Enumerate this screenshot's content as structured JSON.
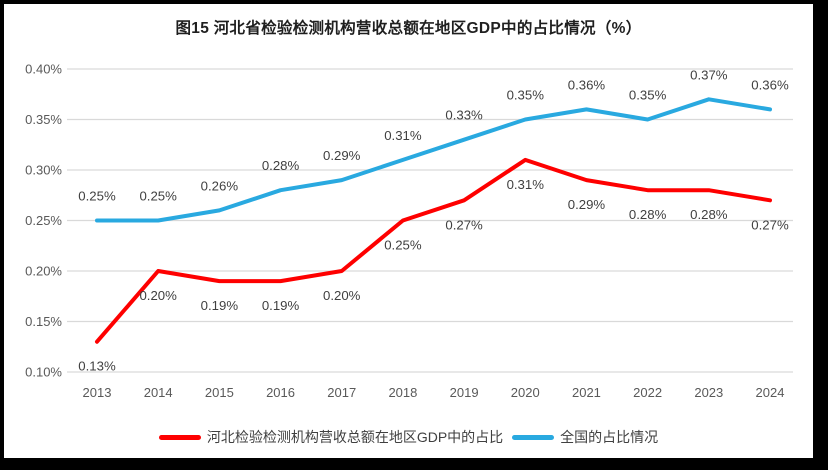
{
  "chart_title": "图15 河北省检验检测机构营收总额在地区GDP中的占比情况（%）",
  "chart_data": {
    "type": "line",
    "title": "图15 河北省检验检测机构营收总额在地区GDP中的占比情况（%）",
    "categories": [
      "2013",
      "2014",
      "2015",
      "2016",
      "2017",
      "2018",
      "2019",
      "2020",
      "2021",
      "2022",
      "2023",
      "2024"
    ],
    "xlabel": "",
    "ylabel": "",
    "y_unit": "%",
    "ylim": [
      0.1,
      0.4
    ],
    "y_ticks": [
      "0.40%",
      "0.35%",
      "0.30%",
      "0.25%",
      "0.20%",
      "0.15%",
      "0.10%"
    ],
    "grid": true,
    "legend_position": "bottom",
    "series": [
      {
        "name": "河北检验检测机构营收总额在地区GDP中的占比",
        "color": "#FE0000",
        "values": [
          0.13,
          0.2,
          0.19,
          0.19,
          0.2,
          0.25,
          0.27,
          0.31,
          0.29,
          0.28,
          0.28,
          0.27
        ],
        "data_labels": [
          "0.13%",
          "0.20%",
          "0.19%",
          "0.19%",
          "0.20%",
          "0.25%",
          "0.27%",
          "0.31%",
          "0.29%",
          "0.28%",
          "0.28%",
          "0.27%"
        ],
        "label_position": "below"
      },
      {
        "name": "全国的占比情况",
        "color": "#29A9E0",
        "values": [
          0.25,
          0.25,
          0.26,
          0.28,
          0.29,
          0.31,
          0.33,
          0.35,
          0.36,
          0.35,
          0.37,
          0.36
        ],
        "data_labels": [
          "0.25%",
          "0.25%",
          "0.26%",
          "0.28%",
          "0.29%",
          "0.31%",
          "0.33%",
          "0.35%",
          "0.36%",
          "0.35%",
          "0.37%",
          "0.36%"
        ],
        "label_position": "above"
      }
    ]
  },
  "colors": {
    "grid_line": "#D9D9D9",
    "axis_text": "#595959",
    "data_label_text": "#404040",
    "title_text": "#1F1F1F",
    "background": "#FFFFFF",
    "frame_border": "#000000"
  }
}
